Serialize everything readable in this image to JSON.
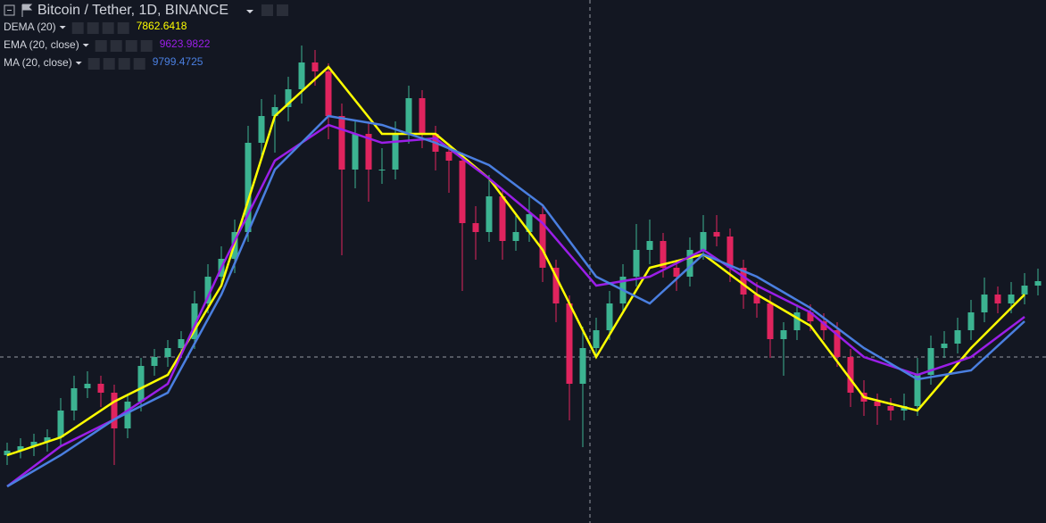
{
  "chart_data": {
    "type": "candlestick",
    "title": "Bitcoin / Tether, 1D, BINANCE",
    "ylim": [
      3000,
      14720
    ],
    "up_color": "#3cb391",
    "down_color": "#e0245e",
    "ohlc": [
      [
        4520,
        4800,
        4300,
        4620
      ],
      [
        4620,
        4900,
        4450,
        4720
      ],
      [
        4720,
        5000,
        4500,
        4820
      ],
      [
        4820,
        5100,
        4600,
        4920
      ],
      [
        4920,
        5800,
        4700,
        5520
      ],
      [
        5520,
        6300,
        5300,
        6020
      ],
      [
        6020,
        6400,
        5800,
        6120
      ],
      [
        6120,
        6300,
        5600,
        5920
      ],
      [
        5920,
        6100,
        4300,
        5120
      ],
      [
        5120,
        5900,
        4900,
        5720
      ],
      [
        5720,
        6700,
        5500,
        6520
      ],
      [
        6520,
        6900,
        6300,
        6720
      ],
      [
        6720,
        7100,
        6500,
        6920
      ],
      [
        6920,
        7300,
        6700,
        7120
      ],
      [
        7120,
        8200,
        6900,
        7920
      ],
      [
        7920,
        8800,
        7700,
        8520
      ],
      [
        8520,
        9200,
        8300,
        8920
      ],
      [
        8920,
        9800,
        8600,
        9520
      ],
      [
        9520,
        11900,
        9300,
        11520
      ],
      [
        11520,
        12500,
        11200,
        12120
      ],
      [
        12120,
        12600,
        11300,
        12320
      ],
      [
        12320,
        13000,
        12000,
        12720
      ],
      [
        12720,
        13700,
        12400,
        13320
      ],
      [
        13320,
        13600,
        12800,
        13120
      ],
      [
        13120,
        13300,
        11600,
        12120
      ],
      [
        12120,
        12400,
        9000,
        10920
      ],
      [
        10920,
        12000,
        10500,
        11720
      ],
      [
        11720,
        12000,
        10200,
        10920
      ],
      [
        10920,
        11400,
        10600,
        10920
      ],
      [
        10920,
        12000,
        10700,
        11720
      ],
      [
        11720,
        12800,
        11500,
        12520
      ],
      [
        12520,
        12700,
        11400,
        11720
      ],
      [
        11720,
        11900,
        10900,
        11320
      ],
      [
        11320,
        11500,
        10400,
        11120
      ],
      [
        11120,
        11300,
        8200,
        9720
      ],
      [
        9720,
        10100,
        8900,
        9520
      ],
      [
        9520,
        10800,
        9300,
        10320
      ],
      [
        10320,
        10500,
        8900,
        9320
      ],
      [
        9320,
        9900,
        9100,
        9520
      ],
      [
        9520,
        10300,
        9300,
        9920
      ],
      [
        9920,
        10100,
        8400,
        8720
      ],
      [
        8720,
        8900,
        7500,
        7920
      ],
      [
        7920,
        8100,
        5300,
        6120
      ],
      [
        6120,
        7400,
        4700,
        6920
      ],
      [
        6920,
        7600,
        6700,
        7320
      ],
      [
        7320,
        8200,
        7100,
        7920
      ],
      [
        7920,
        8800,
        7700,
        8520
      ],
      [
        8520,
        9700,
        8300,
        9120
      ],
      [
        9120,
        9800,
        8800,
        9320
      ],
      [
        9320,
        9500,
        8500,
        8720
      ],
      [
        8720,
        8900,
        8200,
        8520
      ],
      [
        8520,
        9400,
        8300,
        9120
      ],
      [
        9120,
        9900,
        8900,
        9520
      ],
      [
        9520,
        9900,
        9200,
        9420
      ],
      [
        9420,
        9600,
        8400,
        8720
      ],
      [
        8720,
        8900,
        7800,
        8120
      ],
      [
        8120,
        8400,
        7600,
        7920
      ],
      [
        7920,
        8100,
        6700,
        7120
      ],
      [
        7120,
        7500,
        6300,
        7320
      ],
      [
        7320,
        7900,
        7100,
        7720
      ],
      [
        7720,
        7900,
        7300,
        7520
      ],
      [
        7520,
        7700,
        7100,
        7320
      ],
      [
        7320,
        7500,
        6500,
        6720
      ],
      [
        6720,
        6900,
        5600,
        5920
      ],
      [
        5920,
        6200,
        5400,
        5720
      ],
      [
        5720,
        5900,
        5200,
        5620
      ],
      [
        5620,
        5800,
        5300,
        5520
      ],
      [
        5520,
        5900,
        5300,
        5620
      ],
      [
        5620,
        6700,
        5400,
        6320
      ],
      [
        6320,
        7200,
        6100,
        6920
      ],
      [
        6920,
        7300,
        6700,
        7020
      ],
      [
        7020,
        7600,
        6800,
        7320
      ],
      [
        7320,
        8000,
        7100,
        7720
      ],
      [
        7720,
        8500,
        7500,
        8120
      ],
      [
        8120,
        8300,
        7700,
        7920
      ],
      [
        7920,
        8400,
        7700,
        8120
      ],
      [
        8120,
        8600,
        7900,
        8320
      ],
      [
        8320,
        8700,
        8100,
        8420
      ]
    ],
    "line_x": [
      0,
      4,
      8,
      12,
      16,
      20,
      24,
      28,
      32,
      36,
      40,
      44,
      48,
      52,
      56,
      60,
      64,
      68,
      72,
      76
    ],
    "series": [
      {
        "name": "DEMA (20)",
        "color": "#ffff00",
        "last_value": 7862.6418,
        "values": [
          4520,
          4920,
          5720,
          6320,
          8320,
          12120,
          13220,
          11720,
          11720,
          10720,
          9120,
          6720,
          8720,
          9020,
          8120,
          7420,
          5820,
          5520,
          6920,
          8120
        ]
      },
      {
        "name": "EMA (20, close)",
        "color": "#9b1ee8",
        "last_value": 9623.9822,
        "values": [
          3820,
          4720,
          5320,
          6120,
          8720,
          11120,
          11920,
          11520,
          11620,
          10720,
          9720,
          8320,
          8520,
          9120,
          8320,
          7720,
          6720,
          6320,
          6720,
          7620
        ]
      },
      {
        "name": "MA (20, close)",
        "color": "#4a7fe0",
        "last_value": 9799.4725,
        "values": [
          3820,
          4520,
          5320,
          5920,
          8120,
          10920,
          12120,
          11920,
          11520,
          11020,
          10120,
          8520,
          7920,
          9020,
          8520,
          7820,
          6920,
          6220,
          6420,
          7520
        ]
      }
    ]
  }
}
